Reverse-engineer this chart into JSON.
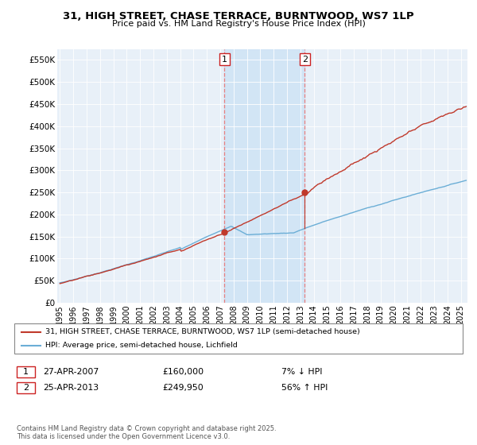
{
  "title": "31, HIGH STREET, CHASE TERRACE, BURNTWOOD, WS7 1LP",
  "subtitle": "Price paid vs. HM Land Registry's House Price Index (HPI)",
  "ylabel_ticks": [
    "£0",
    "£50K",
    "£100K",
    "£150K",
    "£200K",
    "£250K",
    "£300K",
    "£350K",
    "£400K",
    "£450K",
    "£500K",
    "£550K"
  ],
  "ytick_values": [
    0,
    50000,
    100000,
    150000,
    200000,
    250000,
    300000,
    350000,
    400000,
    450000,
    500000,
    550000
  ],
  "ylim": [
    0,
    575000
  ],
  "xlim_start": 1994.8,
  "xlim_end": 2025.5,
  "hpi_color": "#6baed6",
  "price_color": "#c0392b",
  "bg_color": "#e8f0f8",
  "span_color": "#d0e4f5",
  "sale1_x": 2007.32,
  "sale1_y": 160000,
  "sale2_x": 2013.32,
  "sale2_y": 249950,
  "legend_line1": "31, HIGH STREET, CHASE TERRACE, BURNTWOOD, WS7 1LP (semi-detached house)",
  "legend_line2": "HPI: Average price, semi-detached house, Lichfield",
  "annotation1_label": "1",
  "annotation1_date": "27-APR-2007",
  "annotation1_price": "£160,000",
  "annotation1_hpi": "7% ↓ HPI",
  "annotation2_label": "2",
  "annotation2_date": "25-APR-2013",
  "annotation2_price": "£249,950",
  "annotation2_hpi": "56% ↑ HPI",
  "footer": "Contains HM Land Registry data © Crown copyright and database right 2025.\nThis data is licensed under the Open Government Licence v3.0."
}
